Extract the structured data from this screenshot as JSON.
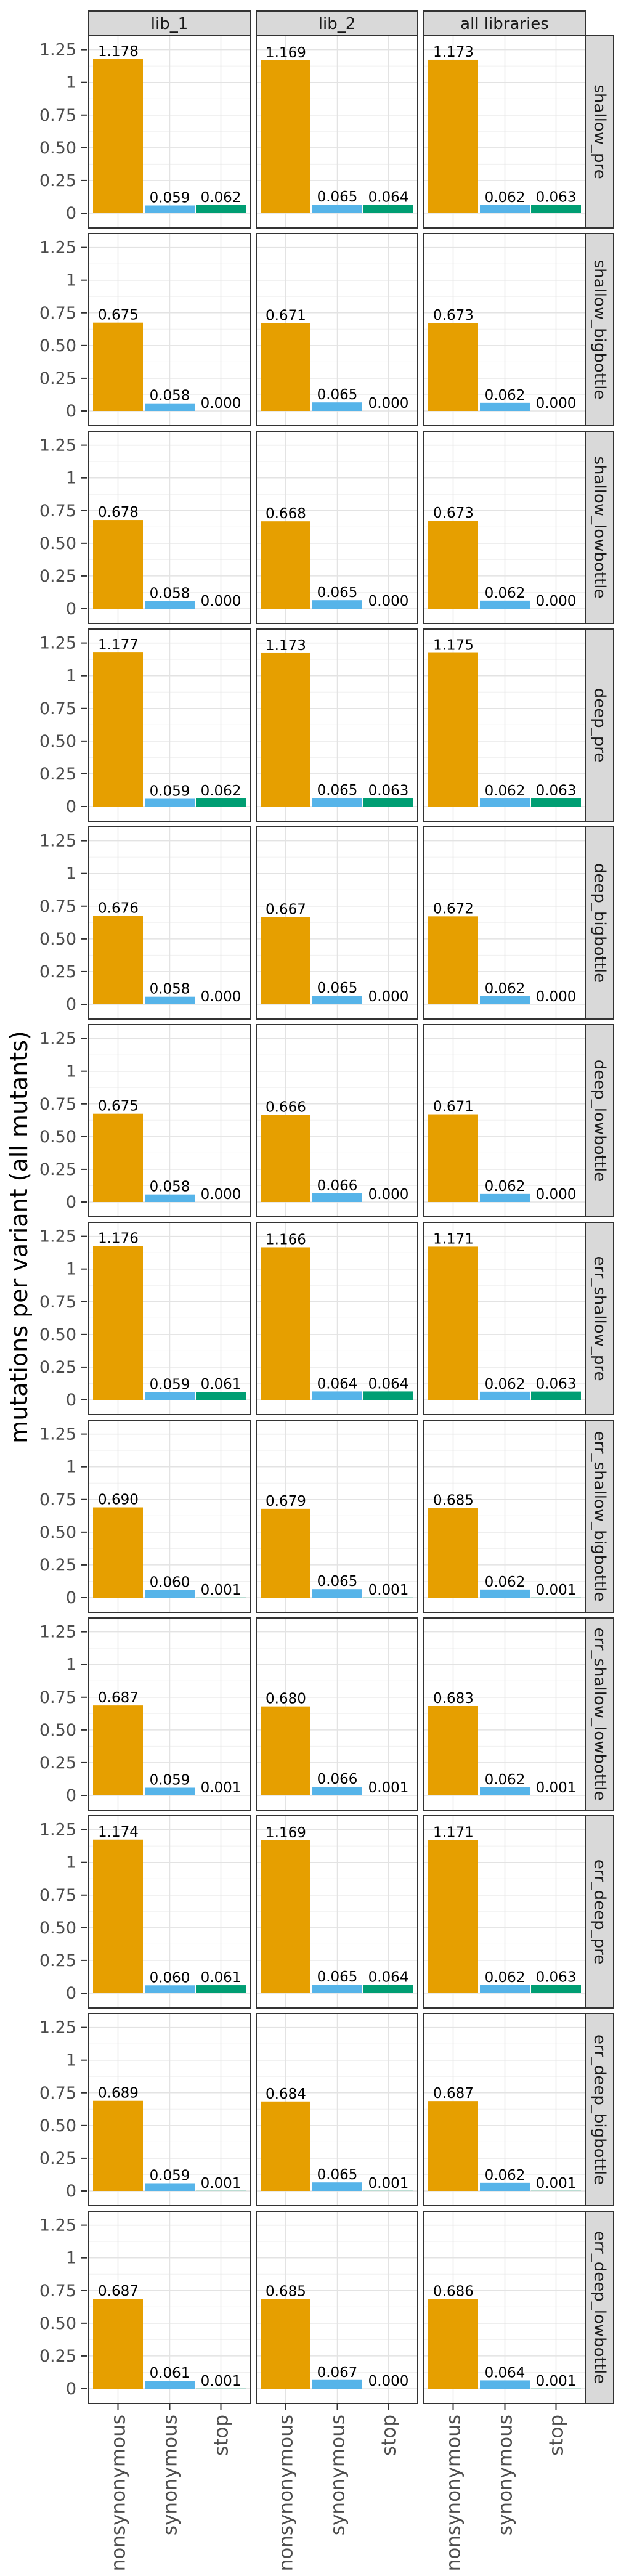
{
  "chart_data": {
    "type": "bar",
    "ylabel": "mutations per variant (all mutants)",
    "xlabel": "",
    "categories": [
      "nonsynonymous",
      "synonymous",
      "stop"
    ],
    "column_facets": [
      "lib_1",
      "lib_2",
      "all libraries"
    ],
    "row_facets": [
      "shallow_pre",
      "shallow_bigbottle",
      "shallow_lowbottle",
      "deep_pre",
      "deep_bigbottle",
      "deep_lowbottle",
      "err_shallow_pre",
      "err_shallow_bigbottle",
      "err_shallow_lowbottle",
      "err_deep_pre",
      "err_deep_bigbottle",
      "err_deep_lowbottle"
    ],
    "ylim": [
      0,
      1.3
    ],
    "yticks": [
      0,
      0.25,
      0.5,
      0.75,
      1,
      1.25
    ],
    "ytick_labels": [
      "0",
      "0.25",
      "0.50",
      "0.75",
      "1",
      "1.25"
    ],
    "colors": {
      "nonsynonymous": "#E69F00",
      "synonymous": "#56B4E9",
      "stop": "#009E73"
    },
    "grid": true,
    "legend": "none",
    "values": [
      [
        [
          1.178,
          0.059,
          0.062
        ],
        [
          1.169,
          0.065,
          0.064
        ],
        [
          1.173,
          0.062,
          0.063
        ]
      ],
      [
        [
          0.675,
          0.058,
          0.0
        ],
        [
          0.671,
          0.065,
          0.0
        ],
        [
          0.673,
          0.062,
          0.0
        ]
      ],
      [
        [
          0.678,
          0.058,
          0.0
        ],
        [
          0.668,
          0.065,
          0.0
        ],
        [
          0.673,
          0.062,
          0.0
        ]
      ],
      [
        [
          1.177,
          0.059,
          0.062
        ],
        [
          1.173,
          0.065,
          0.063
        ],
        [
          1.175,
          0.062,
          0.063
        ]
      ],
      [
        [
          0.676,
          0.058,
          0.0
        ],
        [
          0.667,
          0.065,
          0.0
        ],
        [
          0.672,
          0.062,
          0.0
        ]
      ],
      [
        [
          0.675,
          0.058,
          0.0
        ],
        [
          0.666,
          0.066,
          0.0
        ],
        [
          0.671,
          0.062,
          0.0
        ]
      ],
      [
        [
          1.176,
          0.059,
          0.061
        ],
        [
          1.166,
          0.064,
          0.064
        ],
        [
          1.171,
          0.062,
          0.063
        ]
      ],
      [
        [
          0.69,
          0.06,
          0.001
        ],
        [
          0.679,
          0.065,
          0.001
        ],
        [
          0.685,
          0.062,
          0.001
        ]
      ],
      [
        [
          0.687,
          0.059,
          0.001
        ],
        [
          0.68,
          0.066,
          0.001
        ],
        [
          0.683,
          0.062,
          0.001
        ]
      ],
      [
        [
          1.174,
          0.06,
          0.061
        ],
        [
          1.169,
          0.065,
          0.064
        ],
        [
          1.171,
          0.062,
          0.063
        ]
      ],
      [
        [
          0.689,
          0.059,
          0.001
        ],
        [
          0.684,
          0.065,
          0.001
        ],
        [
          0.687,
          0.062,
          0.001
        ]
      ],
      [
        [
          0.687,
          0.061,
          0.001
        ],
        [
          0.685,
          0.067,
          0.0
        ],
        [
          0.686,
          0.064,
          0.001
        ]
      ]
    ],
    "labels": [
      [
        [
          "1.178",
          "0.059",
          "0.062"
        ],
        [
          "1.169",
          "0.065",
          "0.064"
        ],
        [
          "1.173",
          "0.062",
          "0.063"
        ]
      ],
      [
        [
          "0.675",
          "0.058",
          "0.000"
        ],
        [
          "0.671",
          "0.065",
          "0.000"
        ],
        [
          "0.673",
          "0.062",
          "0.000"
        ]
      ],
      [
        [
          "0.678",
          "0.058",
          "0.000"
        ],
        [
          "0.668",
          "0.065",
          "0.000"
        ],
        [
          "0.673",
          "0.062",
          "0.000"
        ]
      ],
      [
        [
          "1.177",
          "0.059",
          "0.062"
        ],
        [
          "1.173",
          "0.065",
          "0.063"
        ],
        [
          "1.175",
          "0.062",
          "0.063"
        ]
      ],
      [
        [
          "0.676",
          "0.058",
          "0.000"
        ],
        [
          "0.667",
          "0.065",
          "0.000"
        ],
        [
          "0.672",
          "0.062",
          "0.000"
        ]
      ],
      [
        [
          "0.675",
          "0.058",
          "0.000"
        ],
        [
          "0.666",
          "0.066",
          "0.000"
        ],
        [
          "0.671",
          "0.062",
          "0.000"
        ]
      ],
      [
        [
          "1.176",
          "0.059",
          "0.061"
        ],
        [
          "1.166",
          "0.064",
          "0.064"
        ],
        [
          "1.171",
          "0.062",
          "0.063"
        ]
      ],
      [
        [
          "0.690",
          "0.060",
          "0.001"
        ],
        [
          "0.679",
          "0.065",
          "0.001"
        ],
        [
          "0.685",
          "0.062",
          "0.001"
        ]
      ],
      [
        [
          "0.687",
          "0.059",
          "0.001"
        ],
        [
          "0.680",
          "0.066",
          "0.001"
        ],
        [
          "0.683",
          "0.062",
          "0.001"
        ]
      ],
      [
        [
          "1.174",
          "0.060",
          "0.061"
        ],
        [
          "1.169",
          "0.065",
          "0.064"
        ],
        [
          "1.171",
          "0.062",
          "0.063"
        ]
      ],
      [
        [
          "0.689",
          "0.059",
          "0.001"
        ],
        [
          "0.684",
          "0.065",
          "0.001"
        ],
        [
          "0.687",
          "0.062",
          "0.001"
        ]
      ],
      [
        [
          "0.687",
          "0.061",
          "0.001"
        ],
        [
          "0.685",
          "0.067",
          "0.000"
        ],
        [
          "0.686",
          "0.064",
          "0.001"
        ]
      ]
    ]
  }
}
